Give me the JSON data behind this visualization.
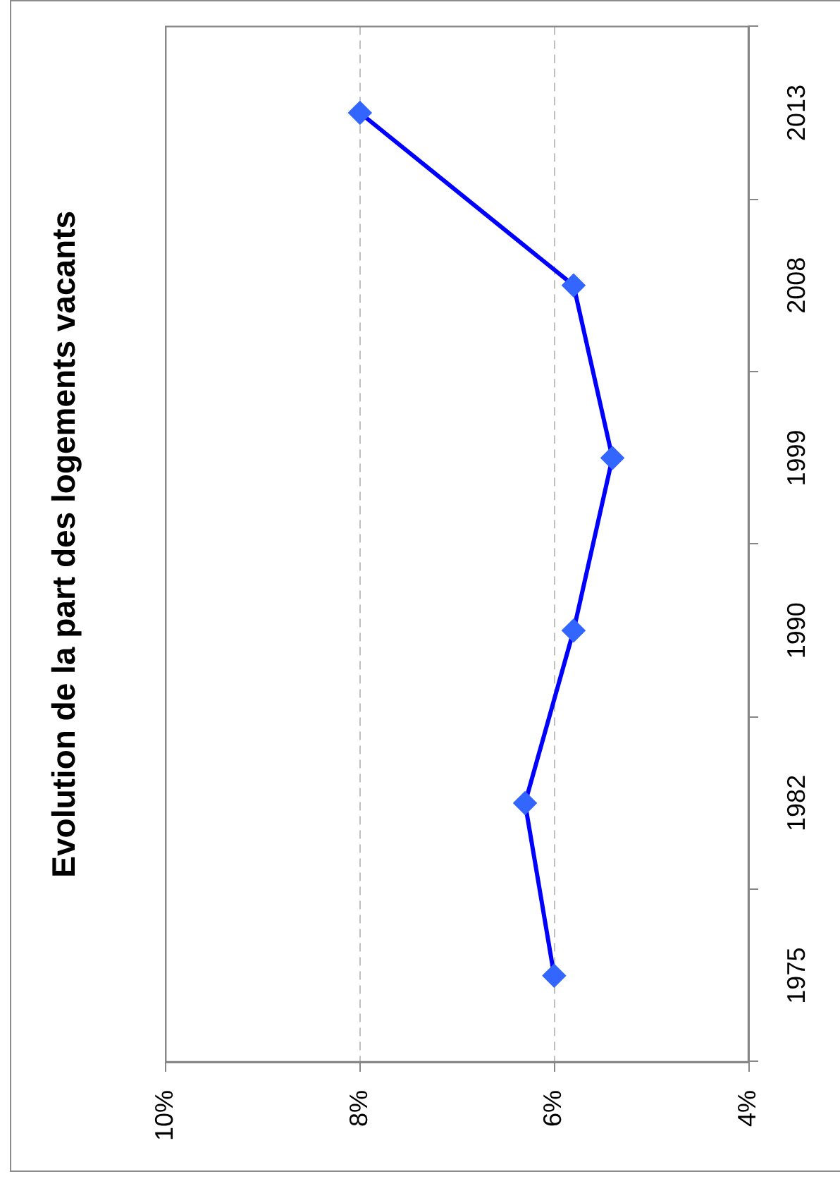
{
  "chart_data": {
    "type": "line",
    "orientation": "horizontal",
    "title": "Evolution de la part des logements vacants",
    "categories": [
      "2013",
      "2008",
      "1999",
      "1990",
      "1982",
      "1975"
    ],
    "series": [
      {
        "color": "#0000ff",
        "colors": [
          "#3366ff",
          "#3366ff",
          "#3366ff",
          "#3366ff",
          "#3366ff",
          "#3366ff"
        ],
        "values": [
          8.0,
          5.8,
          5.4,
          5.8,
          6.3,
          6.0
        ]
      }
    ],
    "xlim": [
      10,
      4
    ],
    "xticks": [
      {
        "value": 10,
        "label": "10%"
      },
      {
        "value": 8,
        "label": "8%"
      },
      {
        "value": 6,
        "label": "6%"
      },
      {
        "value": 4,
        "label": "4%"
      }
    ],
    "grid": "x",
    "marker": "diamond",
    "line_style": "solid"
  }
}
